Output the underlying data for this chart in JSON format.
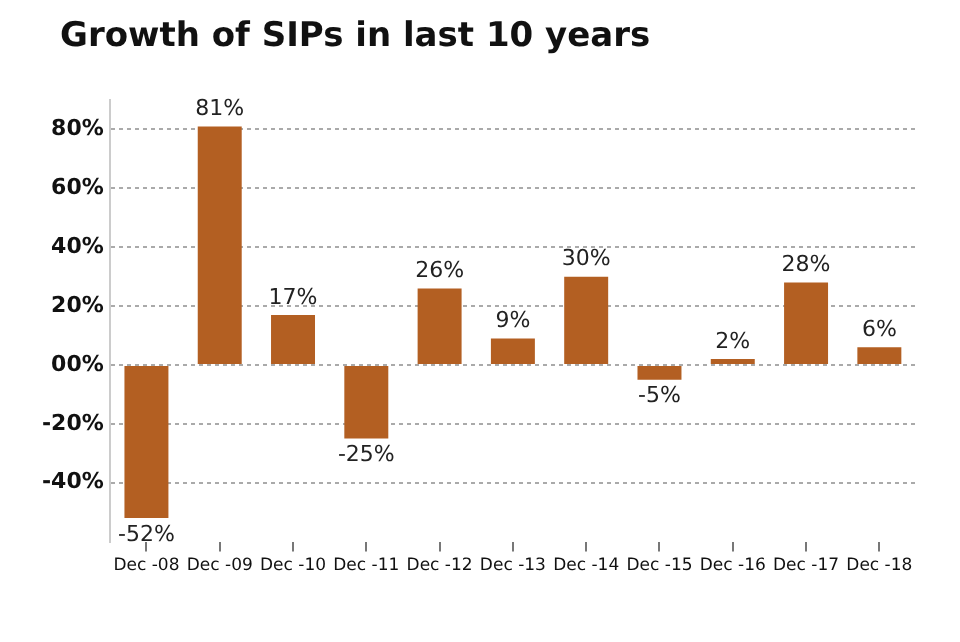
{
  "chart_data": {
    "type": "bar",
    "title": "Growth of SIPs in last 10 years",
    "categories": [
      "Dec -08",
      "Dec -09",
      "Dec -10",
      "Dec -11",
      "Dec -12",
      "Dec -13",
      "Dec -14",
      "Dec -15",
      "Dec -16",
      "Dec -17",
      "Dec -18"
    ],
    "values": [
      -52,
      81,
      17,
      -25,
      26,
      9,
      30,
      -5,
      2,
      28,
      6
    ],
    "value_labels": [
      "-52%",
      "81%",
      "17%",
      "-25%",
      "26%",
      "9%",
      "30%",
      "-5%",
      "2%",
      "28%",
      "6%"
    ],
    "color": "#b35f22",
    "ylim": [
      -60,
      90
    ],
    "yticks": [
      {
        "value": -40,
        "label": "-40%"
      },
      {
        "value": -20,
        "label": "-20%"
      },
      {
        "value": 0,
        "label": "00%"
      },
      {
        "value": 20,
        "label": "20%"
      },
      {
        "value": 40,
        "label": "40%"
      },
      {
        "value": 60,
        "label": "60%"
      },
      {
        "value": 80,
        "label": "80%"
      }
    ],
    "grid": "y"
  }
}
